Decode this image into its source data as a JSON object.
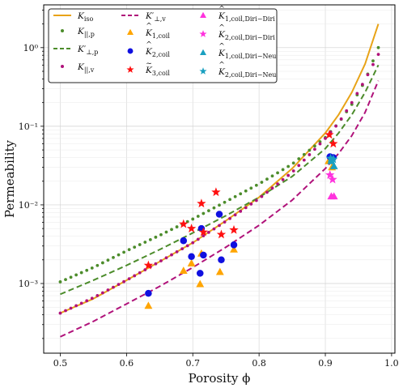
{
  "chart_data": {
    "type": "scatter",
    "title": "",
    "xlabel": "Porosity ϕ",
    "ylabel": "Permeability",
    "xlim": [
      0.475,
      1.005
    ],
    "ylim": [
      0.00013,
      3.5
    ],
    "xscale": "linear",
    "yscale": "log",
    "x_ticks": [
      0.5,
      0.6,
      0.7,
      0.8,
      0.9,
      1.0
    ],
    "x_tick_labels": [
      "0.5",
      "0.6",
      "0.7",
      "0.8",
      "0.9",
      "1.0"
    ],
    "y_ticks": [
      0.001,
      0.01,
      0.1,
      1
    ],
    "y_tick_labels": [
      "10⁻³",
      "10⁻²",
      "10⁻¹",
      "10⁰"
    ],
    "grid": true,
    "legend_position": "top-left",
    "colors": {
      "orange": "#e8a317",
      "green": "#4c8c2b",
      "magenta": "#b0127a",
      "blue": "#1010e0",
      "red": "#ff1010",
      "pink": "#ff33dd",
      "cyan": "#1aa0c0"
    },
    "series": [
      {
        "name": "K_iso",
        "legend_main": "K",
        "legend_sub": "iso",
        "legend_decor": "",
        "kind": "line",
        "style": "solid",
        "color": "#e8a317",
        "x": [
          0.5,
          0.55,
          0.6,
          0.65,
          0.7,
          0.75,
          0.8,
          0.85,
          0.9,
          0.92,
          0.94,
          0.96,
          0.98
        ],
        "y": [
          0.00042,
          0.00064,
          0.0011,
          0.0019,
          0.0033,
          0.0063,
          0.0125,
          0.029,
          0.082,
          0.14,
          0.27,
          0.62,
          2.0
        ]
      },
      {
        "name": "K_||,p",
        "legend_main": "K",
        "legend_sub": "||,p",
        "legend_decor": "",
        "kind": "dotted",
        "color": "#4c8c2b",
        "x": [
          0.5,
          0.55,
          0.6,
          0.65,
          0.7,
          0.75,
          0.8,
          0.85,
          0.9,
          0.92,
          0.94,
          0.96,
          0.98
        ],
        "y": [
          0.00105,
          0.0016,
          0.0026,
          0.0041,
          0.0066,
          0.011,
          0.0185,
          0.033,
          0.072,
          0.11,
          0.19,
          0.38,
          1.0
        ]
      },
      {
        "name": "K'_⊥,p",
        "legend_main": "K",
        "legend_sub": "⊥,p",
        "legend_decor": "′",
        "kind": "line",
        "style": "dashed",
        "color": "#4c8c2b",
        "x": [
          0.5,
          0.55,
          0.6,
          0.65,
          0.7,
          0.75,
          0.8,
          0.85,
          0.9,
          0.92,
          0.94,
          0.96,
          0.98
        ],
        "y": [
          0.00073,
          0.0011,
          0.0017,
          0.0027,
          0.0044,
          0.0073,
          0.0125,
          0.023,
          0.052,
          0.082,
          0.14,
          0.27,
          0.6
        ]
      },
      {
        "name": "K_||,v",
        "legend_main": "K",
        "legend_sub": "||,v",
        "legend_decor": "",
        "kind": "dotted",
        "color": "#b0127a",
        "x": [
          0.5,
          0.55,
          0.6,
          0.65,
          0.7,
          0.75,
          0.8,
          0.85,
          0.9,
          0.92,
          0.94,
          0.96,
          0.98
        ],
        "y": [
          0.00042,
          0.00066,
          0.0011,
          0.0019,
          0.0033,
          0.0062,
          0.012,
          0.026,
          0.07,
          0.11,
          0.2,
          0.39,
          0.82
        ]
      },
      {
        "name": "K'_⊥,v",
        "legend_main": "K",
        "legend_sub": "⊥,v",
        "legend_decor": "′",
        "kind": "line",
        "style": "dashed",
        "color": "#b0127a",
        "x": [
          0.5,
          0.55,
          0.6,
          0.65,
          0.7,
          0.75,
          0.8,
          0.85,
          0.9,
          0.92,
          0.94,
          0.96,
          0.98
        ],
        "y": [
          0.00021,
          0.00033,
          0.00055,
          0.00092,
          0.0016,
          0.0029,
          0.0055,
          0.0115,
          0.029,
          0.045,
          0.076,
          0.15,
          0.38
        ]
      },
      {
        "name": "K̂_1,coil",
        "legend_main": "K",
        "legend_sub": "1,coil",
        "legend_decor": "^",
        "kind": "marker",
        "marker": "triangle",
        "color": "#ffa500",
        "x": [
          0.633,
          0.686,
          0.698,
          0.711,
          0.713,
          0.741,
          0.762,
          0.905,
          0.91
        ],
        "y": [
          0.00052,
          0.00145,
          0.0018,
          0.00098,
          0.0024,
          0.0014,
          0.0027,
          0.036,
          0.03
        ]
      },
      {
        "name": "K̂_2,coil",
        "legend_main": "K",
        "legend_sub": "2,coil",
        "legend_decor": "^",
        "kind": "marker",
        "marker": "circle",
        "color": "#1010e0",
        "x": [
          0.633,
          0.686,
          0.698,
          0.711,
          0.713,
          0.716,
          0.74,
          0.743,
          0.762,
          0.907,
          0.912
        ],
        "y": [
          0.00075,
          0.0035,
          0.0022,
          0.00135,
          0.005,
          0.0023,
          0.0076,
          0.002,
          0.0031,
          0.041,
          0.04
        ]
      },
      {
        "name": "K̃_3,coil",
        "legend_main": "K",
        "legend_sub": "3,coil",
        "legend_decor": "~",
        "kind": "marker",
        "marker": "star",
        "color": "#ff1010",
        "x": [
          0.633,
          0.686,
          0.698,
          0.713,
          0.716,
          0.735,
          0.743,
          0.762,
          0.906,
          0.912
        ],
        "y": [
          0.0017,
          0.0057,
          0.005,
          0.0104,
          0.0045,
          0.0145,
          0.0042,
          0.0048,
          0.078,
          0.06
        ]
      },
      {
        "name": "K̂_1,coil,Diri−Diri",
        "legend_main": "K",
        "legend_sub": "1,coil,Diri−Diri",
        "legend_decor": "^",
        "kind": "marker",
        "marker": "triangle",
        "color": "#ff33dd",
        "x": [
          0.909,
          0.913
        ],
        "y": [
          0.0128,
          0.0128
        ]
      },
      {
        "name": "K̂_2,coil,Diri−Diri",
        "legend_main": "K",
        "legend_sub": "2,coil,Diri−Diri",
        "legend_decor": "^",
        "kind": "marker",
        "marker": "star",
        "color": "#ff33dd",
        "x": [
          0.907,
          0.911
        ],
        "y": [
          0.024,
          0.021
        ]
      },
      {
        "name": "K̂_1,coil,Diri−Neu",
        "legend_main": "K",
        "legend_sub": "1,coil,Diri−Neu",
        "legend_decor": "^",
        "kind": "marker",
        "marker": "triangle",
        "color": "#1aa0c0",
        "x": [
          0.909,
          0.913
        ],
        "y": [
          0.036,
          0.031
        ]
      },
      {
        "name": "K̂_2,coil,Diri−Neu",
        "legend_main": "K",
        "legend_sub": "2,coil,Diri−Neu",
        "legend_decor": "^",
        "kind": "marker",
        "marker": "star",
        "color": "#1aa0c0",
        "x": [
          0.908,
          0.912
        ],
        "y": [
          0.039,
          0.038
        ]
      }
    ]
  }
}
